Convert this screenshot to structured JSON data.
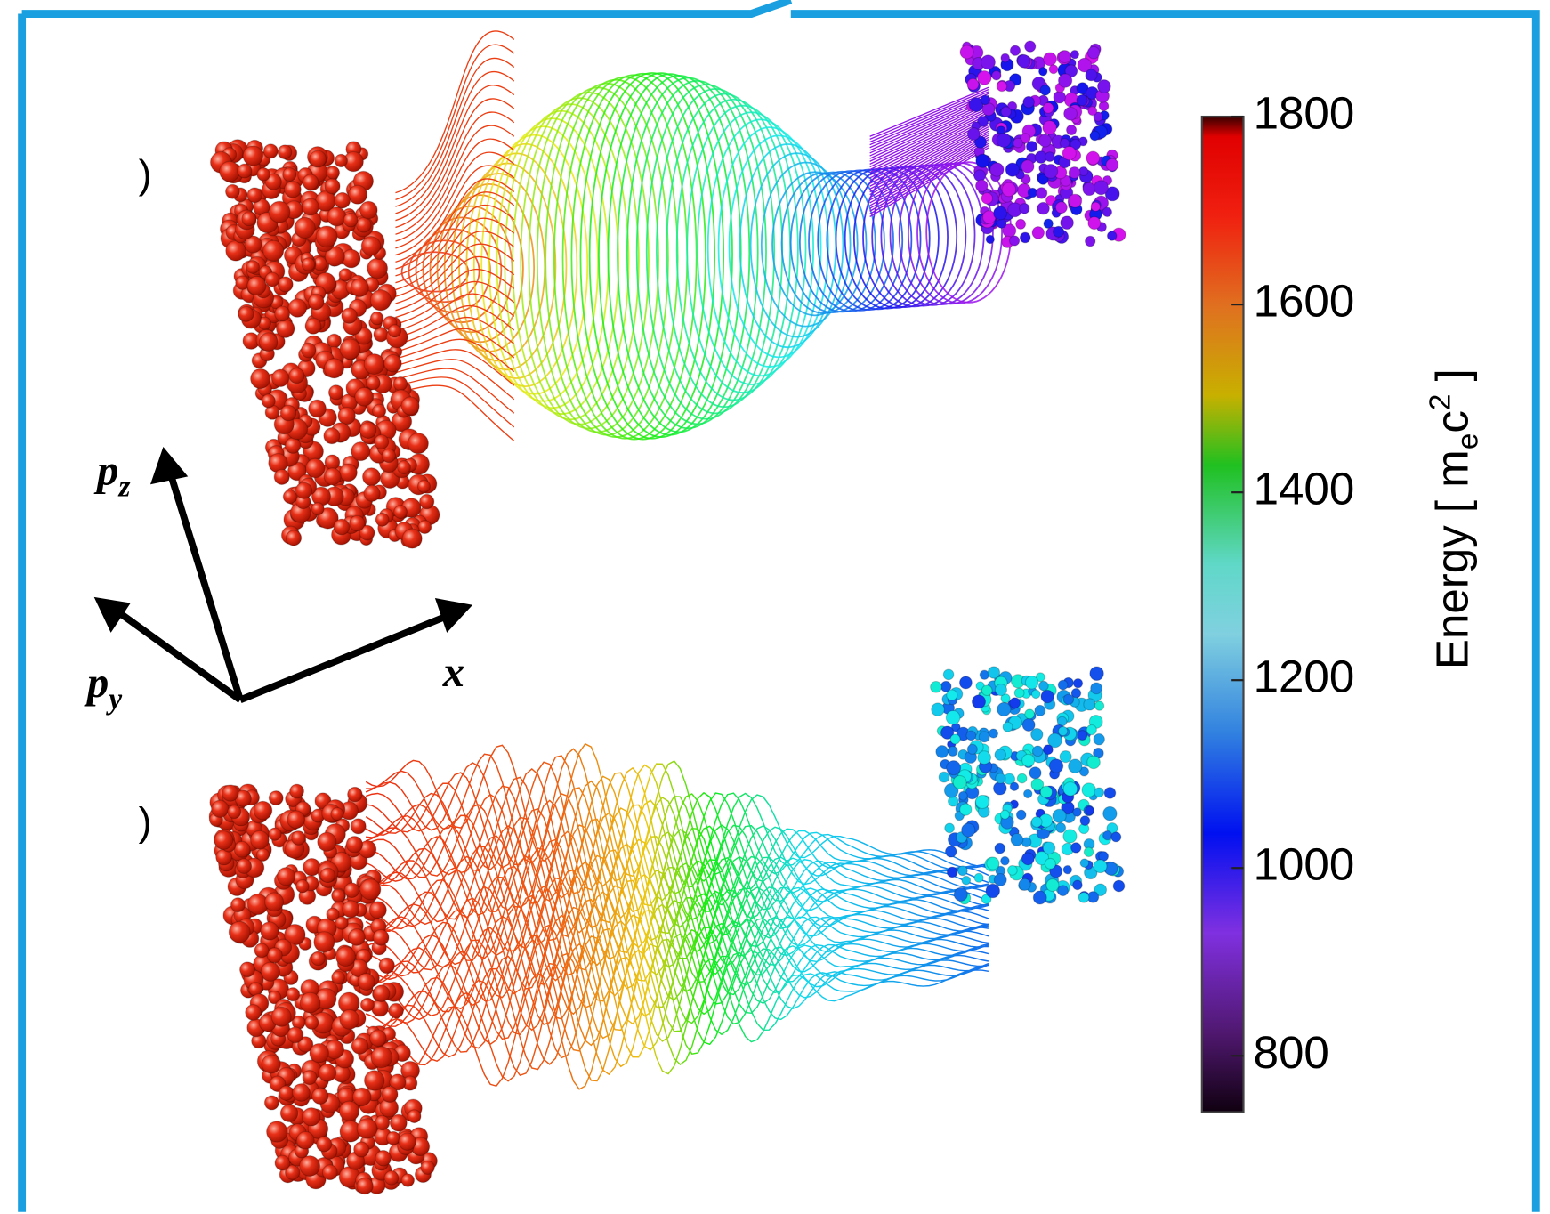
{
  "panel_labels": [
    ")",
    ")"
  ],
  "axes": {
    "pz": {
      "base": "p",
      "sub": "z"
    },
    "py": {
      "base": "p",
      "sub": "y"
    },
    "x": "x"
  },
  "colorbar": {
    "label_parts": [
      "Energy [ m",
      "e",
      "c",
      "2",
      " ]"
    ],
    "lim": [
      740,
      1800
    ],
    "ticks": [
      800,
      1000,
      1200,
      1400,
      1600,
      1800
    ]
  }
}
